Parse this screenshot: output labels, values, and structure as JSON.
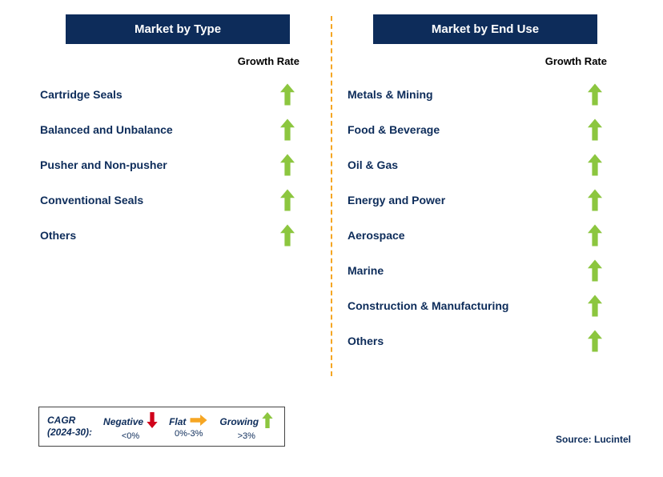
{
  "colors": {
    "header_bg": "#0d2c5a",
    "header_text": "#ffffff",
    "label_text": "#0d2c5a",
    "growth_up": "#8cc63f",
    "growth_flat": "#f6a623",
    "growth_down": "#d0021b",
    "divider": "#f5a623",
    "body_text": "#000000"
  },
  "left": {
    "title": "Market by Type",
    "growth_label": "Growth Rate",
    "items": [
      {
        "label": "Cartridge Seals",
        "trend": "up"
      },
      {
        "label": "Balanced and Unbalance",
        "trend": "up"
      },
      {
        "label": "Pusher and Non-pusher",
        "trend": "up"
      },
      {
        "label": "Conventional Seals",
        "trend": "up"
      },
      {
        "label": "Others",
        "trend": "up"
      }
    ]
  },
  "right": {
    "title": "Market by End Use",
    "growth_label": "Growth Rate",
    "items": [
      {
        "label": "Metals & Mining",
        "trend": "up"
      },
      {
        "label": "Food & Beverage",
        "trend": "up"
      },
      {
        "label": "Oil & Gas",
        "trend": "up"
      },
      {
        "label": "Energy and Power",
        "trend": "up"
      },
      {
        "label": "Aerospace",
        "trend": "up"
      },
      {
        "label": "Marine",
        "trend": "up"
      },
      {
        "label": "Construction & Manufacturing",
        "trend": "up"
      },
      {
        "label": "Others",
        "trend": "up"
      }
    ]
  },
  "legend": {
    "cagr_line1": "CAGR",
    "cagr_line2": "(2024-30):",
    "negative_label": "Negative",
    "negative_range": "<0%",
    "flat_label": "Flat",
    "flat_range": "0%-3%",
    "growing_label": "Growing",
    "growing_range": ">3%"
  },
  "source": "Source: Lucintel"
}
